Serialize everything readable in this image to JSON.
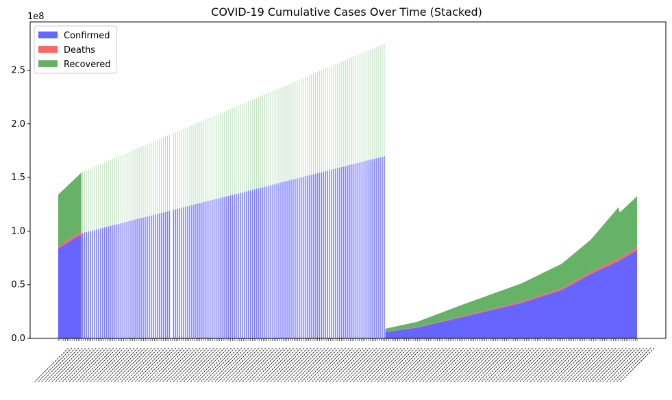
{
  "chart_data": {
    "type": "area",
    "stacked": true,
    "title": "COVID-19 Cumulative Cases Over Time (Stacked)",
    "xlabel": "",
    "ylabel": "",
    "y_multiplier_label": "1e8",
    "ylim": [
      0,
      2.95
    ],
    "yticks": [
      0.0,
      0.5,
      1.0,
      1.5,
      2.0,
      2.5
    ],
    "ytick_labels": [
      "0.0",
      "0.5",
      "1.0",
      "1.5",
      "2.0",
      "2.5"
    ],
    "xtick_labels": "dense overlapping date labels (illegible)",
    "legend_position": "upper-left",
    "colors": {
      "confirmed": "#6666ff",
      "deaths": "#ff6666",
      "recovered": "#66b266",
      "axis": "#000000"
    },
    "segments": [
      {
        "part": "early_contiguous",
        "x": [
          0,
          0.04
        ],
        "series": [
          {
            "name": "Confirmed",
            "values": [
              0.84,
              0.97
            ]
          },
          {
            "name": "Deaths",
            "values": [
              0.02,
              0.025
            ]
          },
          {
            "name": "Recovered",
            "values": [
              0.48,
              0.55
            ]
          }
        ]
      },
      {
        "part": "sparse_spikes",
        "x": [
          0.04,
          0.565
        ],
        "totals_start_end": [
          1.55,
          2.75
        ],
        "confirmed_start_end": [
          0.98,
          1.7
        ],
        "gap_at": 0.196
      },
      {
        "part": "late_contiguous",
        "x": [
          0.565,
          0.62,
          0.7,
          0.8,
          0.87,
          0.92,
          0.968,
          0.97,
          1.0
        ],
        "series": [
          {
            "name": "Confirmed",
            "values": [
              0.06,
              0.1,
              0.2,
              0.33,
              0.45,
              0.6,
              0.72,
              0.73,
              0.82
            ]
          },
          {
            "name": "Deaths",
            "values": [
              0.002,
              0.004,
              0.008,
              0.012,
              0.016,
              0.02,
              0.023,
              0.023,
              0.025
            ]
          },
          {
            "name": "Recovered",
            "values": [
              0.028,
              0.05,
              0.11,
              0.17,
              0.23,
              0.3,
              0.48,
              0.42,
              0.48
            ]
          }
        ]
      }
    ],
    "legend": [
      {
        "name": "Confirmed",
        "color": "#6666ff"
      },
      {
        "name": "Deaths",
        "color": "#ff6666"
      },
      {
        "name": "Recovered",
        "color": "#66b266"
      }
    ]
  }
}
